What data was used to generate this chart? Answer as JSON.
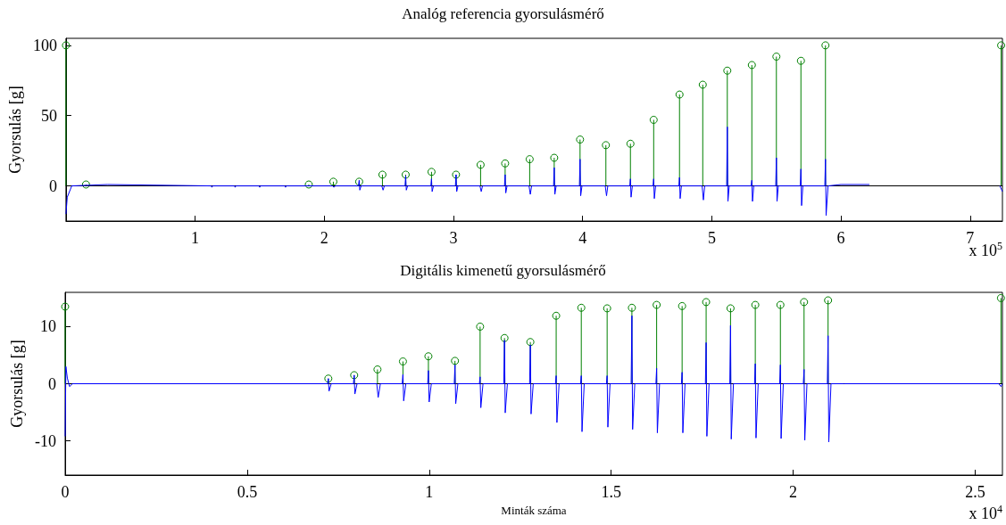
{
  "chart_data": [
    {
      "type": "line",
      "title": "Analóg referencia gyorsulásmérő",
      "ylabel": "Gyorsulás [g]",
      "annotations": [
        "x 10$^{5}$"
      ],
      "xlim": [
        0,
        7.25
      ],
      "xticks": [
        1,
        2,
        3,
        4,
        5,
        6,
        7
      ],
      "ylim": [
        -25,
        105
      ],
      "yticks": [
        0,
        50,
        100
      ],
      "ref_lines": [
        {
          "axis": "y",
          "value": 0,
          "color": "#000000"
        }
      ],
      "series": [
        {
          "marker": "none",
          "color": "#0000ff",
          "x": [
            0,
            0.01,
            0.045,
            0.32,
            1.125,
            1.13,
            1.135,
            1.305,
            1.31,
            1.315,
            1.495,
            1.5,
            1.505,
            1.695,
            1.7,
            1.705,
            2.065,
            2.075,
            2.085,
            2.265,
            2.27,
            2.275,
            2.285,
            2.445,
            2.455,
            2.465,
            2.625,
            2.63,
            2.635,
            2.645,
            2.825,
            2.83,
            2.835,
            2.845,
            3.015,
            3.02,
            3.025,
            3.035,
            3.205,
            3.215,
            3.225,
            3.395,
            3.4,
            3.405,
            3.415,
            3.585,
            3.595,
            3.605,
            3.775,
            3.78,
            3.785,
            3.795,
            3.975,
            3.98,
            3.985,
            3.995,
            4.175,
            4.185,
            4.195,
            4.365,
            4.37,
            4.375,
            4.385,
            4.545,
            4.55,
            4.555,
            4.565,
            4.745,
            4.75,
            4.755,
            4.765,
            4.925,
            4.935,
            4.945,
            5.115,
            5.12,
            5.125,
            5.135,
            5.305,
            5.31,
            5.315,
            5.325,
            5.495,
            5.5,
            5.505,
            5.515,
            5.685,
            5.69,
            5.695,
            5.705,
            5.875,
            5.88,
            5.885,
            5.9,
            6.0,
            6.22,
            6.5,
            7.23,
            7.25
          ],
          "values": [
            -20,
            -8,
            0,
            1,
            0,
            -1,
            0,
            0,
            -1,
            0,
            0,
            -1,
            0,
            0,
            -1,
            0,
            0,
            -1,
            0,
            0,
            4,
            -3,
            0,
            0,
            -3,
            0,
            0,
            7,
            -3,
            0,
            0,
            5,
            -4,
            0,
            0,
            8,
            -4,
            0,
            0,
            -4,
            0,
            0,
            8,
            -5,
            0,
            0,
            -6,
            0,
            0,
            13,
            -6,
            0,
            0,
            19,
            -7,
            0,
            0,
            -7,
            0,
            0,
            5,
            -8,
            0,
            0,
            5,
            -9,
            0,
            0,
            6,
            -9,
            0,
            0,
            -10,
            0,
            0,
            42,
            -11,
            0,
            0,
            4,
            -11,
            0,
            0,
            20,
            -11,
            0,
            0,
            12,
            -14,
            0,
            0,
            19,
            -21,
            0,
            1,
            1,
            null,
            0,
            -4
          ]
        },
        {
          "type": "lollipop",
          "marker": "circle",
          "color": "#008000",
          "x": [
            0,
            0.155,
            1.88,
            2.07,
            2.27,
            2.45,
            2.63,
            2.83,
            3.02,
            3.21,
            3.4,
            3.59,
            3.78,
            3.98,
            4.18,
            4.37,
            4.55,
            4.75,
            4.93,
            5.12,
            5.31,
            5.5,
            5.69,
            5.88,
            7.24
          ],
          "values": [
            100,
            1,
            1,
            3,
            3,
            8,
            8,
            10,
            8,
            15,
            16,
            19,
            20,
            33,
            29,
            30,
            47,
            65,
            72,
            82,
            86,
            92,
            89,
            100,
            100
          ]
        }
      ]
    },
    {
      "type": "line",
      "title": "Digitális kimenetű gyorsulásmérő",
      "xlabel": "Minták száma",
      "ylabel": "Gyorsulás [g]",
      "annotations": [
        "x 10$^{4}$"
      ],
      "xlim": [
        0,
        2.575
      ],
      "xticks": [
        0,
        0.5,
        1,
        1.5,
        2,
        2.5
      ],
      "ylim": [
        -16,
        16
      ],
      "yticks": [
        -10,
        0,
        10
      ],
      "ref_lines": [
        {
          "axis": "y",
          "value": 0,
          "color": "#000000"
        }
      ],
      "series": [
        {
          "marker": "none",
          "color": "#0000ff",
          "x": [
            0,
            0.002,
            0.006,
            0.012,
            0.02,
            0.721,
            0.723,
            0.725,
            0.731,
            0.792,
            0.794,
            0.796,
            0.802,
            0.856,
            0.86,
            0.866,
            0.926,
            0.928,
            0.93,
            0.936,
            0.996,
            0.998,
            1.0,
            1.006,
            1.069,
            1.071,
            1.073,
            1.079,
            1.138,
            1.14,
            1.142,
            1.148,
            1.205,
            1.207,
            1.209,
            1.215,
            1.276,
            1.278,
            1.28,
            1.286,
            1.347,
            1.349,
            1.351,
            1.357,
            1.416,
            1.418,
            1.42,
            1.426,
            1.487,
            1.489,
            1.491,
            1.497,
            1.555,
            1.557,
            1.559,
            1.565,
            1.623,
            1.625,
            1.627,
            1.633,
            1.693,
            1.695,
            1.697,
            1.703,
            1.759,
            1.761,
            1.763,
            1.769,
            1.826,
            1.828,
            1.83,
            1.836,
            1.894,
            1.896,
            1.898,
            1.904,
            1.963,
            1.965,
            1.967,
            1.973,
            2.028,
            2.03,
            2.032,
            2.038,
            2.094,
            2.096,
            2.098,
            2.104,
            2.14,
            2.565,
            2.571,
            2.575
          ],
          "values": [
            -9.2,
            3.0,
            1.0,
            -0.5,
            0,
            0,
            0.9,
            -1.3,
            0,
            0,
            1.5,
            -1.8,
            0,
            0,
            -2.4,
            0,
            0,
            1.6,
            -3.0,
            0,
            0,
            2.3,
            -3.2,
            0,
            0,
            3.3,
            -3.5,
            0,
            0,
            1.2,
            -4.2,
            0,
            0,
            7.6,
            -5.1,
            0,
            0,
            6.8,
            -5.3,
            0,
            0,
            1.4,
            -6.8,
            0,
            0,
            1.4,
            -8.4,
            0,
            0,
            1.4,
            -7.6,
            0,
            0,
            11.9,
            -8.0,
            0,
            0,
            2.7,
            -8.6,
            0,
            0,
            2.0,
            -8.6,
            0,
            0,
            7.2,
            -9.2,
            0,
            0,
            10.2,
            -9.7,
            0,
            0,
            3.5,
            -9.5,
            0,
            0,
            3.3,
            -9.6,
            0,
            0,
            2.5,
            -9.9,
            0,
            0,
            8.4,
            -10.2,
            0,
            0,
            0,
            -0.5,
            0
          ]
        },
        {
          "type": "lollipop",
          "marker": "circle",
          "color": "#008000",
          "x": [
            0,
            0.723,
            0.794,
            0.858,
            0.928,
            0.998,
            1.071,
            1.14,
            1.207,
            1.278,
            1.349,
            1.418,
            1.489,
            1.557,
            1.625,
            1.695,
            1.761,
            1.828,
            1.896,
            1.965,
            2.03,
            2.096,
            2.571
          ],
          "values": [
            13.5,
            0.9,
            1.5,
            2.5,
            3.9,
            4.8,
            4.0,
            10.0,
            8.0,
            7.3,
            11.9,
            13.3,
            13.2,
            13.3,
            13.8,
            13.6,
            14.3,
            13.2,
            13.8,
            13.8,
            14.3,
            14.6,
            15.0
          ]
        }
      ]
    }
  ]
}
